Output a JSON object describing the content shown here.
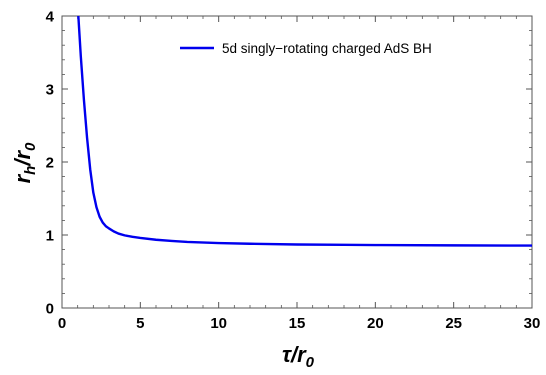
{
  "chart_data": {
    "type": "line",
    "xlabel": {
      "main": "τ/r",
      "sub": "0"
    },
    "ylabel": {
      "main": "r",
      "sub1": "h",
      "mid": "/r",
      "sub2": "0"
    },
    "xlim": [
      0,
      30
    ],
    "ylim": [
      0,
      4
    ],
    "x_ticks": [
      "0",
      "5",
      "10",
      "15",
      "20",
      "25",
      "30"
    ],
    "y_ticks": [
      "0",
      "1",
      "2",
      "3",
      "4"
    ],
    "grid": false,
    "legend_position": "top-right",
    "series": [
      {
        "name": "5d singly−rotating charged AdS BH",
        "color": "#0000ee",
        "x": [
          1.0,
          1.2,
          1.4,
          1.6,
          1.8,
          2.0,
          2.2,
          2.4,
          2.6,
          2.8,
          3.0,
          3.3,
          3.6,
          4.0,
          4.5,
          5.0,
          6.0,
          7.0,
          8.0,
          10.0,
          12.0,
          15.0,
          18.0,
          20.0,
          25.0,
          30.0
        ],
        "values": [
          4.15,
          3.45,
          2.85,
          2.33,
          1.9,
          1.58,
          1.38,
          1.25,
          1.17,
          1.12,
          1.09,
          1.05,
          1.02,
          0.995,
          0.975,
          0.96,
          0.935,
          0.918,
          0.905,
          0.89,
          0.88,
          0.87,
          0.865,
          0.862,
          0.858,
          0.855
        ]
      }
    ]
  }
}
